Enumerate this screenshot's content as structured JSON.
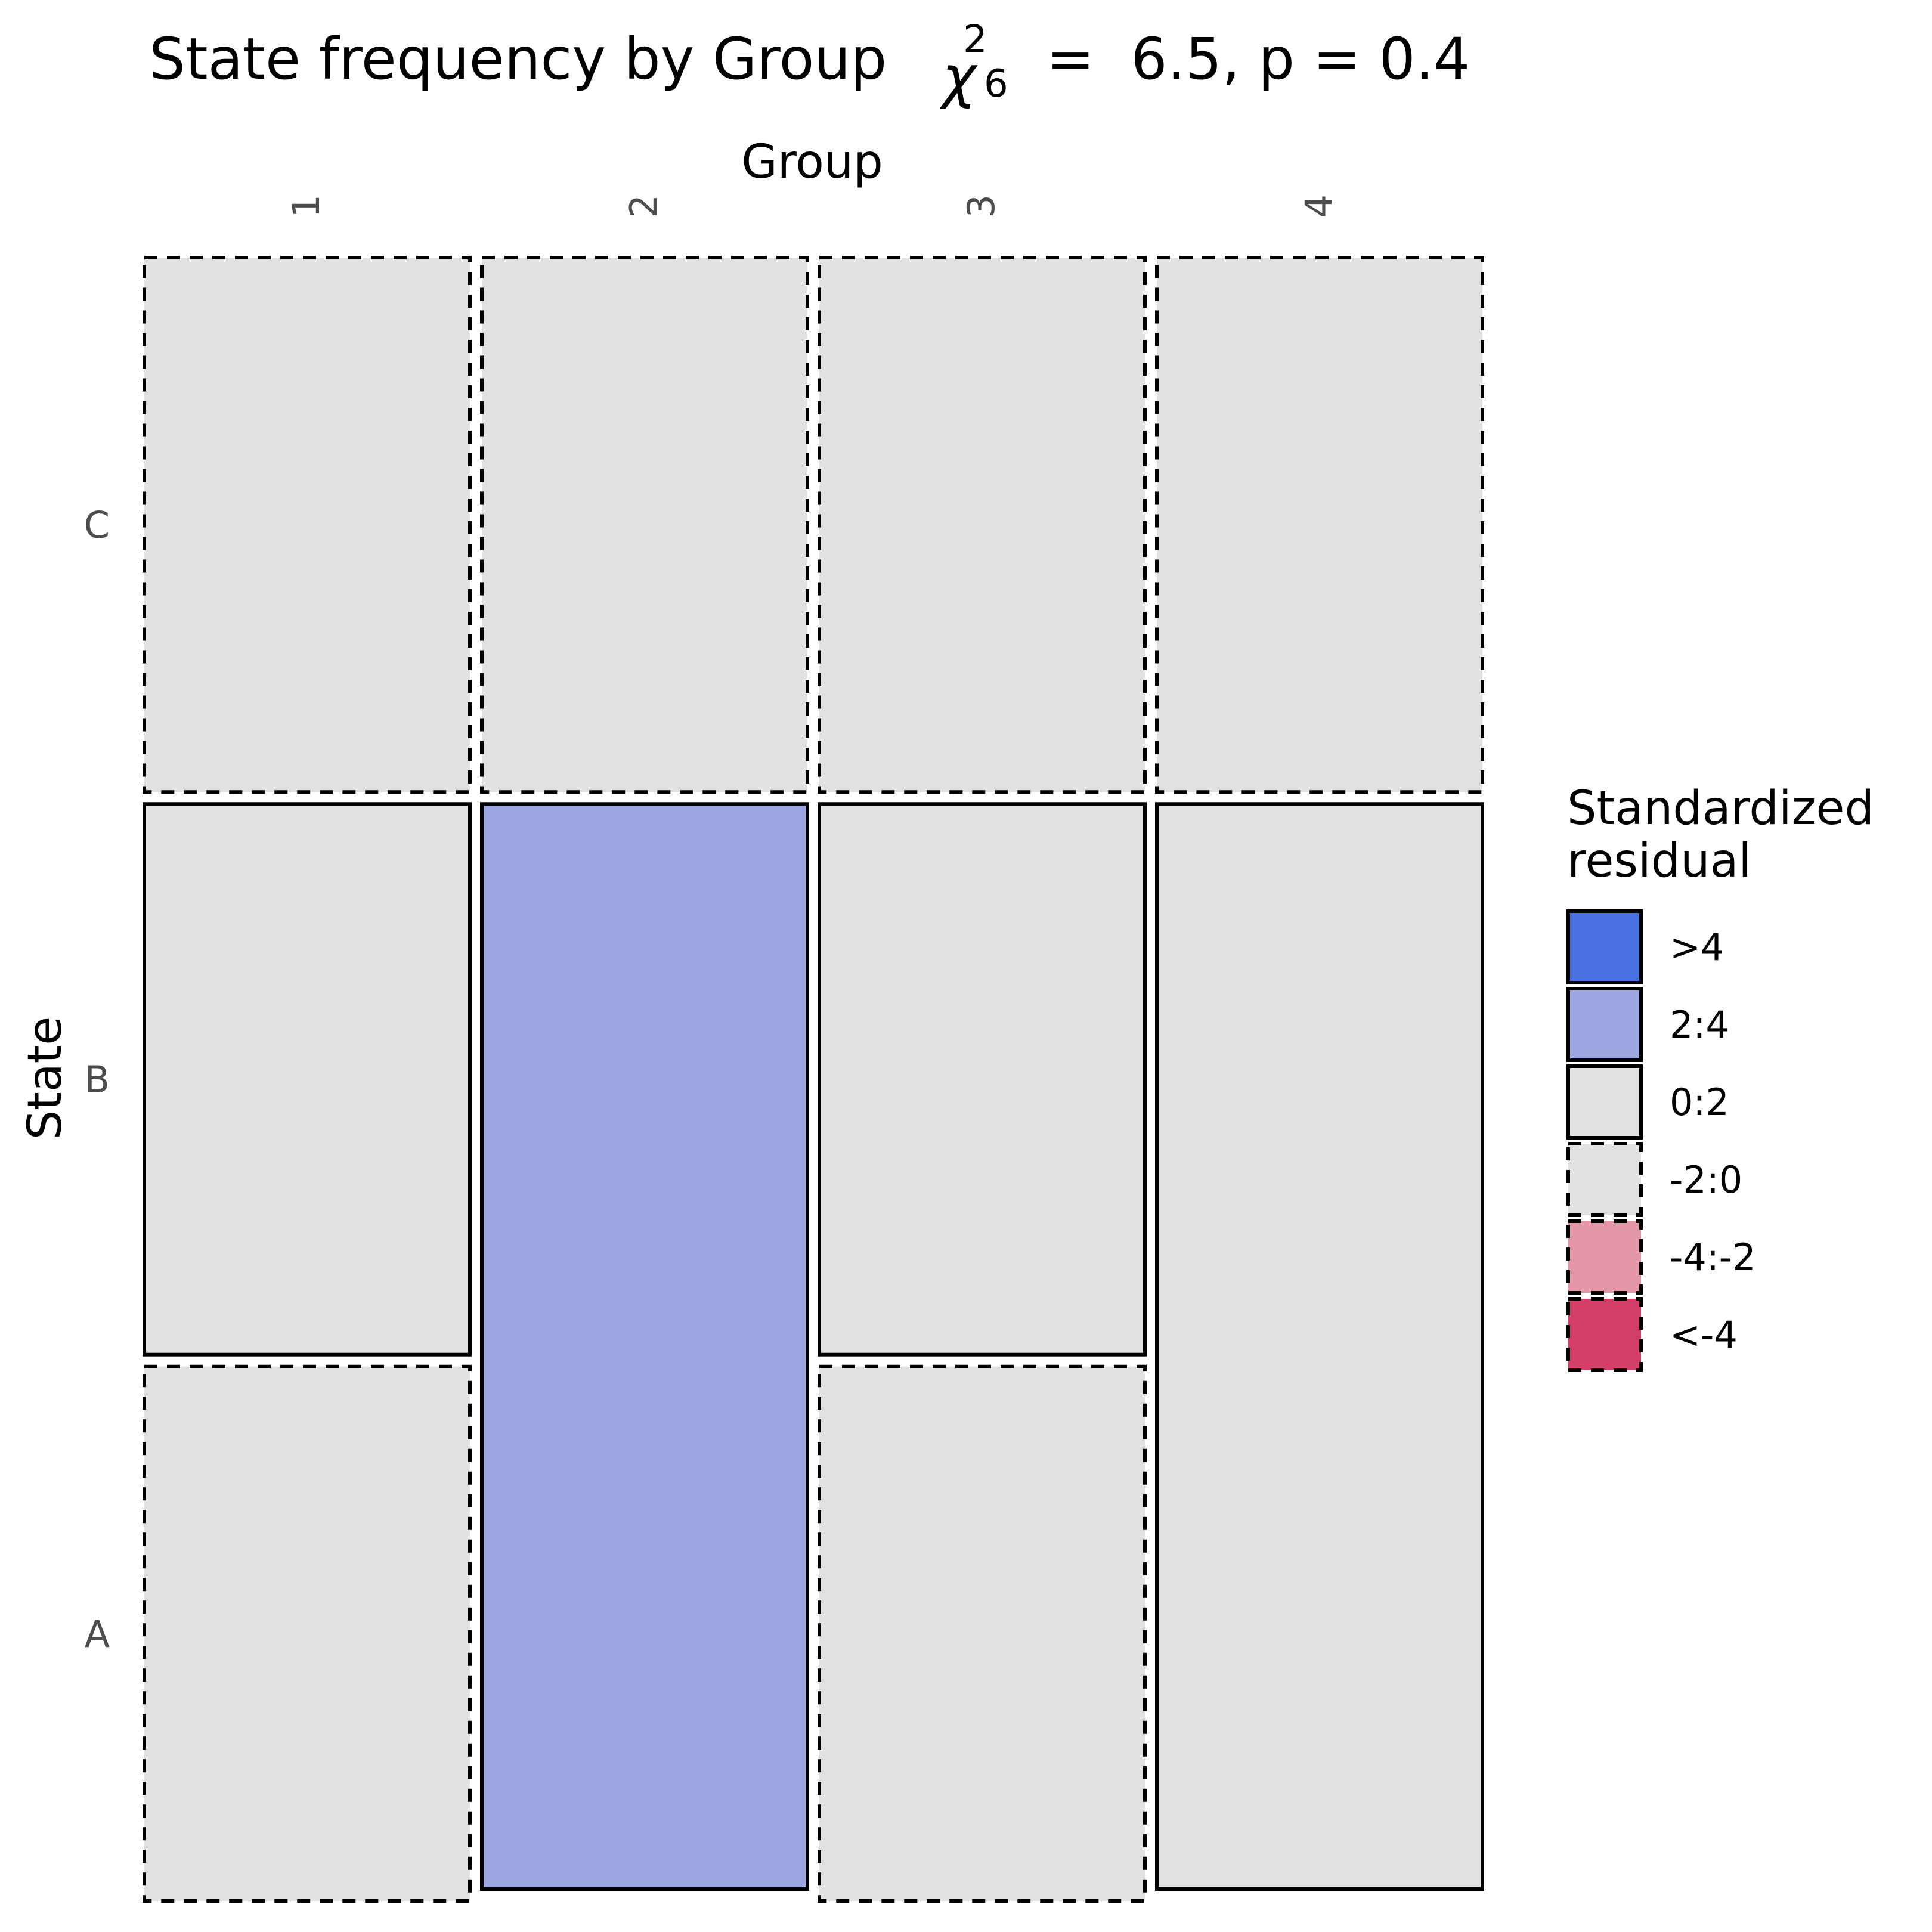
{
  "title": {
    "prefix": "State frequency by Group",
    "stat_symbol": "χ",
    "stat_superscript": "2",
    "stat_subscript": "6",
    "stat_rest": "=  6.5, p = 0.4"
  },
  "colors": {
    "background": "#ffffff",
    "tile_neutral": "#e1e1e1",
    "tile_pos_mid": "#9ca7e2",
    "legend_pos_high": "#4a71e2",
    "legend_neg_mid": "#e397a8",
    "legend_neg_high": "#d43f6a",
    "stroke": "#000000",
    "tick_text": "#4d4d4d"
  },
  "chart_data": {
    "type": "mosaic",
    "x_title": "Group",
    "y_title": "State",
    "x_axis_position": "top",
    "x_tick_rotation": "vertical",
    "x_categories": [
      "1",
      "2",
      "3",
      "4"
    ],
    "y_categories": [
      "A",
      "B",
      "C"
    ],
    "column_shares": [
      0.25,
      0.25,
      0.25,
      0.25
    ],
    "cells": [
      {
        "group": "1",
        "state": "A",
        "proportion": 0.33,
        "residual_class": "-2:0"
      },
      {
        "group": "1",
        "state": "B",
        "proportion": 0.34,
        "residual_class": "0:2"
      },
      {
        "group": "1",
        "state": "C",
        "proportion": 0.33,
        "residual_class": "-2:0"
      },
      {
        "group": "2",
        "state": "A",
        "proportion": 0.0,
        "residual_class": "-2:0"
      },
      {
        "group": "2",
        "state": "B",
        "proportion": 0.67,
        "residual_class": "2:4"
      },
      {
        "group": "2",
        "state": "C",
        "proportion": 0.33,
        "residual_class": "-2:0"
      },
      {
        "group": "3",
        "state": "A",
        "proportion": 0.33,
        "residual_class": "-2:0"
      },
      {
        "group": "3",
        "state": "B",
        "proportion": 0.34,
        "residual_class": "0:2"
      },
      {
        "group": "3",
        "state": "C",
        "proportion": 0.33,
        "residual_class": "-2:0"
      },
      {
        "group": "4",
        "state": "A",
        "proportion": 0.0,
        "residual_class": "-2:0"
      },
      {
        "group": "4",
        "state": "B",
        "proportion": 0.67,
        "residual_class": "0:2"
      },
      {
        "group": "4",
        "state": "C",
        "proportion": 0.33,
        "residual_class": "-2:0"
      }
    ],
    "legend": {
      "title_line1": "Standardized",
      "title_line2": "residual",
      "placement": "right",
      "items": [
        {
          "label": ">4",
          "color": "#4a71e2",
          "border": "solid"
        },
        {
          "label": "2:4",
          "color": "#9ca7e2",
          "border": "solid"
        },
        {
          "label": "0:2",
          "color": "#e1e1e1",
          "border": "solid"
        },
        {
          "label": "-2:0",
          "color": "#e1e1e1",
          "border": "dashed"
        },
        {
          "label": "-4:-2",
          "color": "#e397a8",
          "border": "dashed"
        },
        {
          "label": "<-4",
          "color": "#d43f6a",
          "border": "dashed"
        }
      ]
    }
  }
}
